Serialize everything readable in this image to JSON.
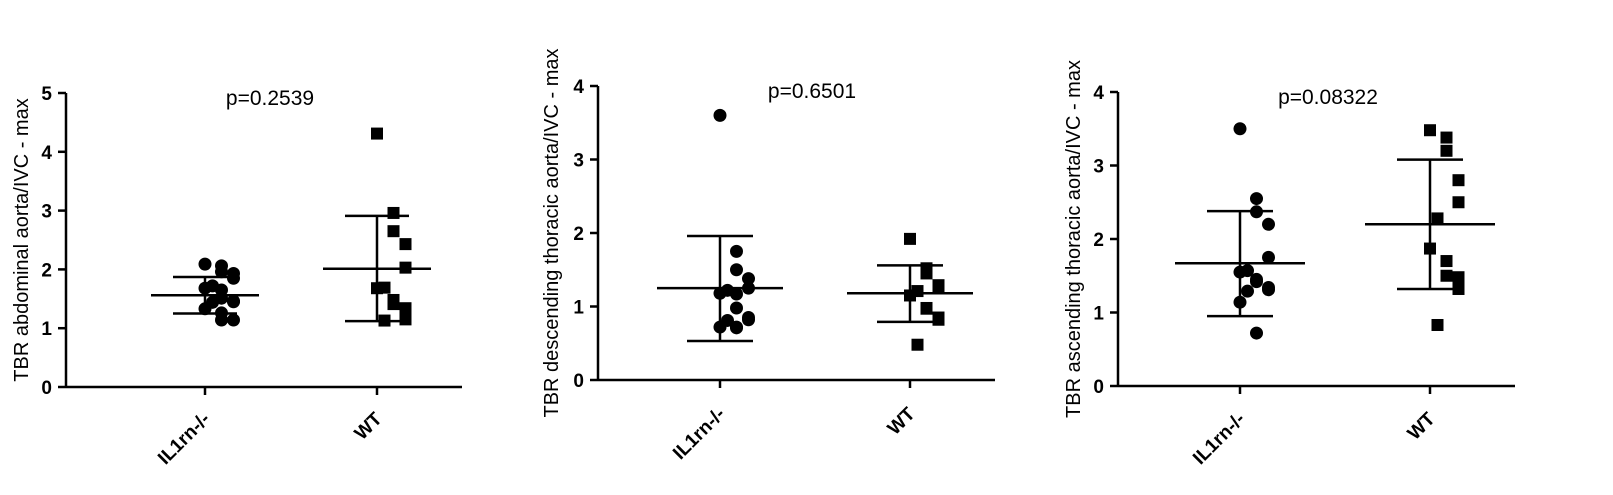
{
  "chart_data": [
    {
      "type": "scatter",
      "ylabel": "TBR abdominal aorta/IVC - max",
      "annotation": "p=0.2539",
      "ylim": [
        0,
        5
      ],
      "yticks": [
        "0",
        "1",
        "2",
        "3",
        "4",
        "5"
      ],
      "categories": [
        "IL1rn-/-",
        "WT"
      ],
      "grid": false,
      "series": [
        {
          "marker": "circle",
          "mean": 1.56,
          "sd_upper": 1.87,
          "sd_lower": 1.25,
          "values": [
            2.09,
            2.06,
            1.93,
            1.96,
            1.85,
            1.72,
            1.68,
            1.65,
            1.51,
            1.46,
            1.45,
            1.44,
            1.33,
            1.26,
            1.14,
            1.14
          ]
        },
        {
          "marker": "square",
          "mean": 2.01,
          "sd_upper": 2.91,
          "sd_lower": 1.12,
          "values": [
            4.31,
            2.96,
            2.65,
            2.43,
            2.03,
            1.69,
            1.68,
            1.48,
            1.41,
            1.34,
            1.15,
            1.13
          ]
        }
      ]
    },
    {
      "type": "scatter",
      "ylabel": "TBR descending thoracic aorta/IVC - max",
      "annotation": "p=0.6501",
      "ylim": [
        0,
        4
      ],
      "yticks": [
        "0",
        "1",
        "2",
        "3",
        "4"
      ],
      "categories": [
        "IL1rn-/-",
        "WT"
      ],
      "grid": false,
      "series": [
        {
          "marker": "circle",
          "mean": 1.25,
          "sd_upper": 1.96,
          "sd_lower": 0.53,
          "values": [
            3.6,
            1.75,
            1.5,
            1.38,
            1.25,
            1.22,
            1.18,
            1.17,
            0.98,
            0.85,
            0.82,
            0.81,
            0.72,
            0.72,
            0.71
          ]
        },
        {
          "marker": "square",
          "mean": 1.18,
          "sd_upper": 1.56,
          "sd_lower": 0.79,
          "values": [
            1.92,
            1.52,
            1.45,
            1.29,
            1.27,
            1.21,
            1.15,
            0.98,
            0.97,
            0.85,
            0.82,
            0.48
          ]
        }
      ]
    },
    {
      "type": "scatter",
      "ylabel": "TBR ascending thoracic aorta/IVC - max",
      "annotation": "p=0.08322",
      "ylim": [
        0,
        4
      ],
      "yticks": [
        "0",
        "1",
        "2",
        "3",
        "4"
      ],
      "categories": [
        "IL1rn-/-",
        "WT"
      ],
      "grid": false,
      "series": [
        {
          "marker": "circle",
          "mean": 1.67,
          "sd_upper": 2.38,
          "sd_lower": 0.95,
          "values": [
            3.5,
            2.55,
            2.37,
            2.2,
            1.75,
            1.57,
            1.55,
            1.45,
            1.42,
            1.34,
            1.31,
            1.29,
            1.14,
            0.72
          ]
        },
        {
          "marker": "square",
          "mean": 2.2,
          "sd_upper": 3.08,
          "sd_lower": 1.32,
          "values": [
            3.48,
            3.38,
            3.2,
            2.8,
            2.5,
            2.28,
            1.87,
            1.7,
            1.5,
            1.48,
            1.32,
            0.83
          ]
        }
      ]
    }
  ]
}
